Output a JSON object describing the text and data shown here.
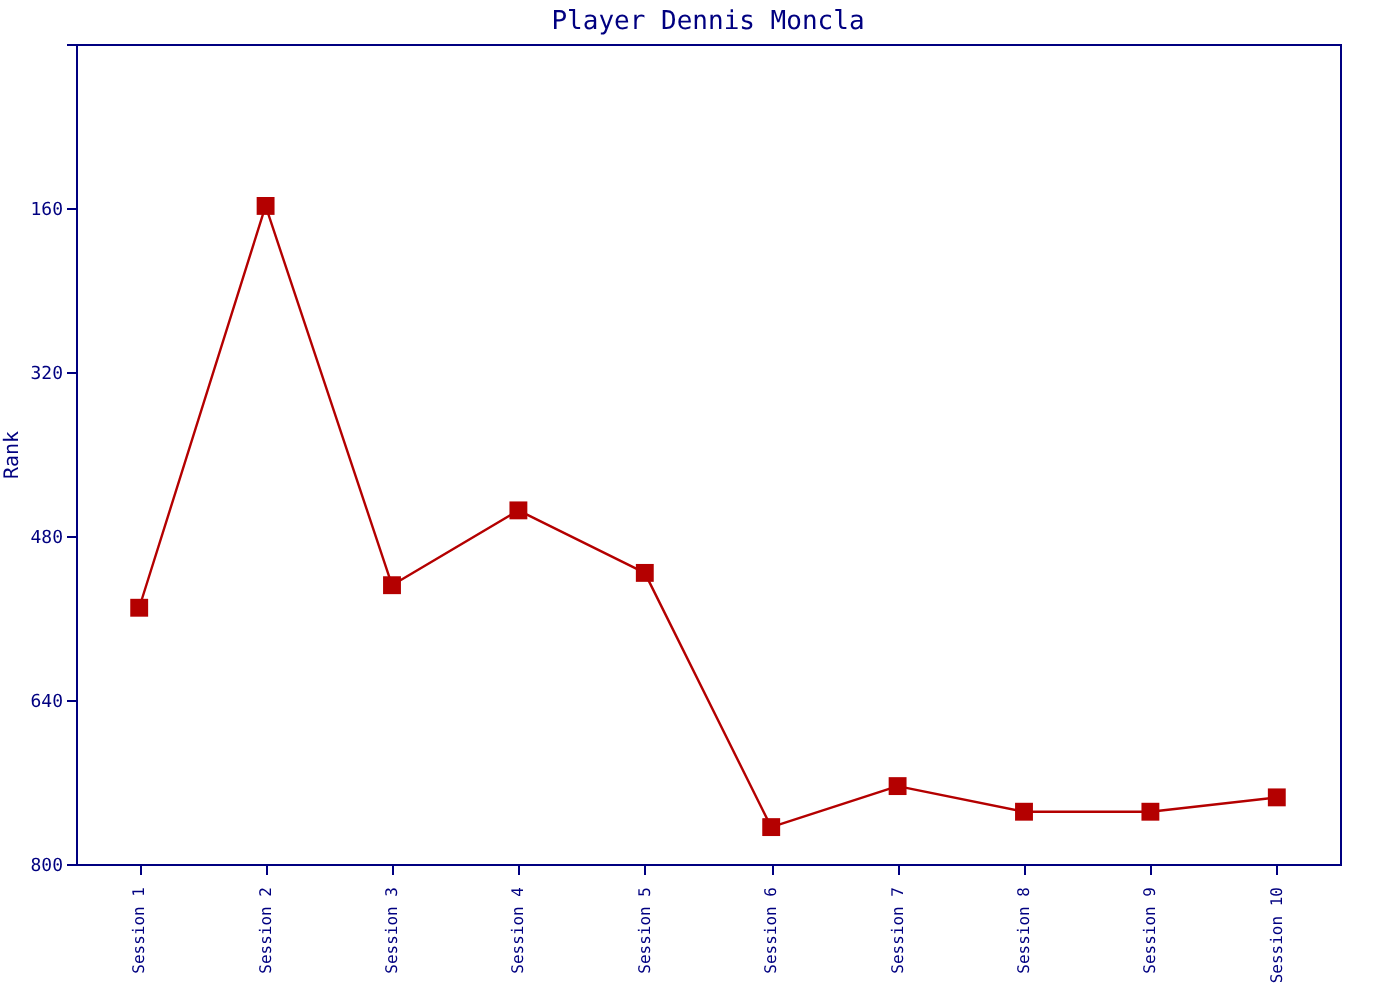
{
  "chart_data": {
    "type": "line",
    "title": "Player Dennis Moncla",
    "ylabel": "Rank",
    "categories": [
      "Session 1",
      "Session 2",
      "Session 3",
      "Session 4",
      "Session 5",
      "Session 6",
      "Session 7",
      "Session 8",
      "Session 9",
      "Session 10"
    ],
    "series": [
      {
        "color": "#b40000",
        "values": [
          550,
          158,
          528,
          455,
          516,
          764,
          724,
          749,
          749,
          735
        ]
      }
    ],
    "ylim": [
      800,
      0
    ],
    "yticks": [
      {
        "value": 0,
        "label": null
      },
      160,
      320,
      480,
      640,
      800
    ],
    "marker": "square",
    "line_style": "solid",
    "grid": false
  }
}
